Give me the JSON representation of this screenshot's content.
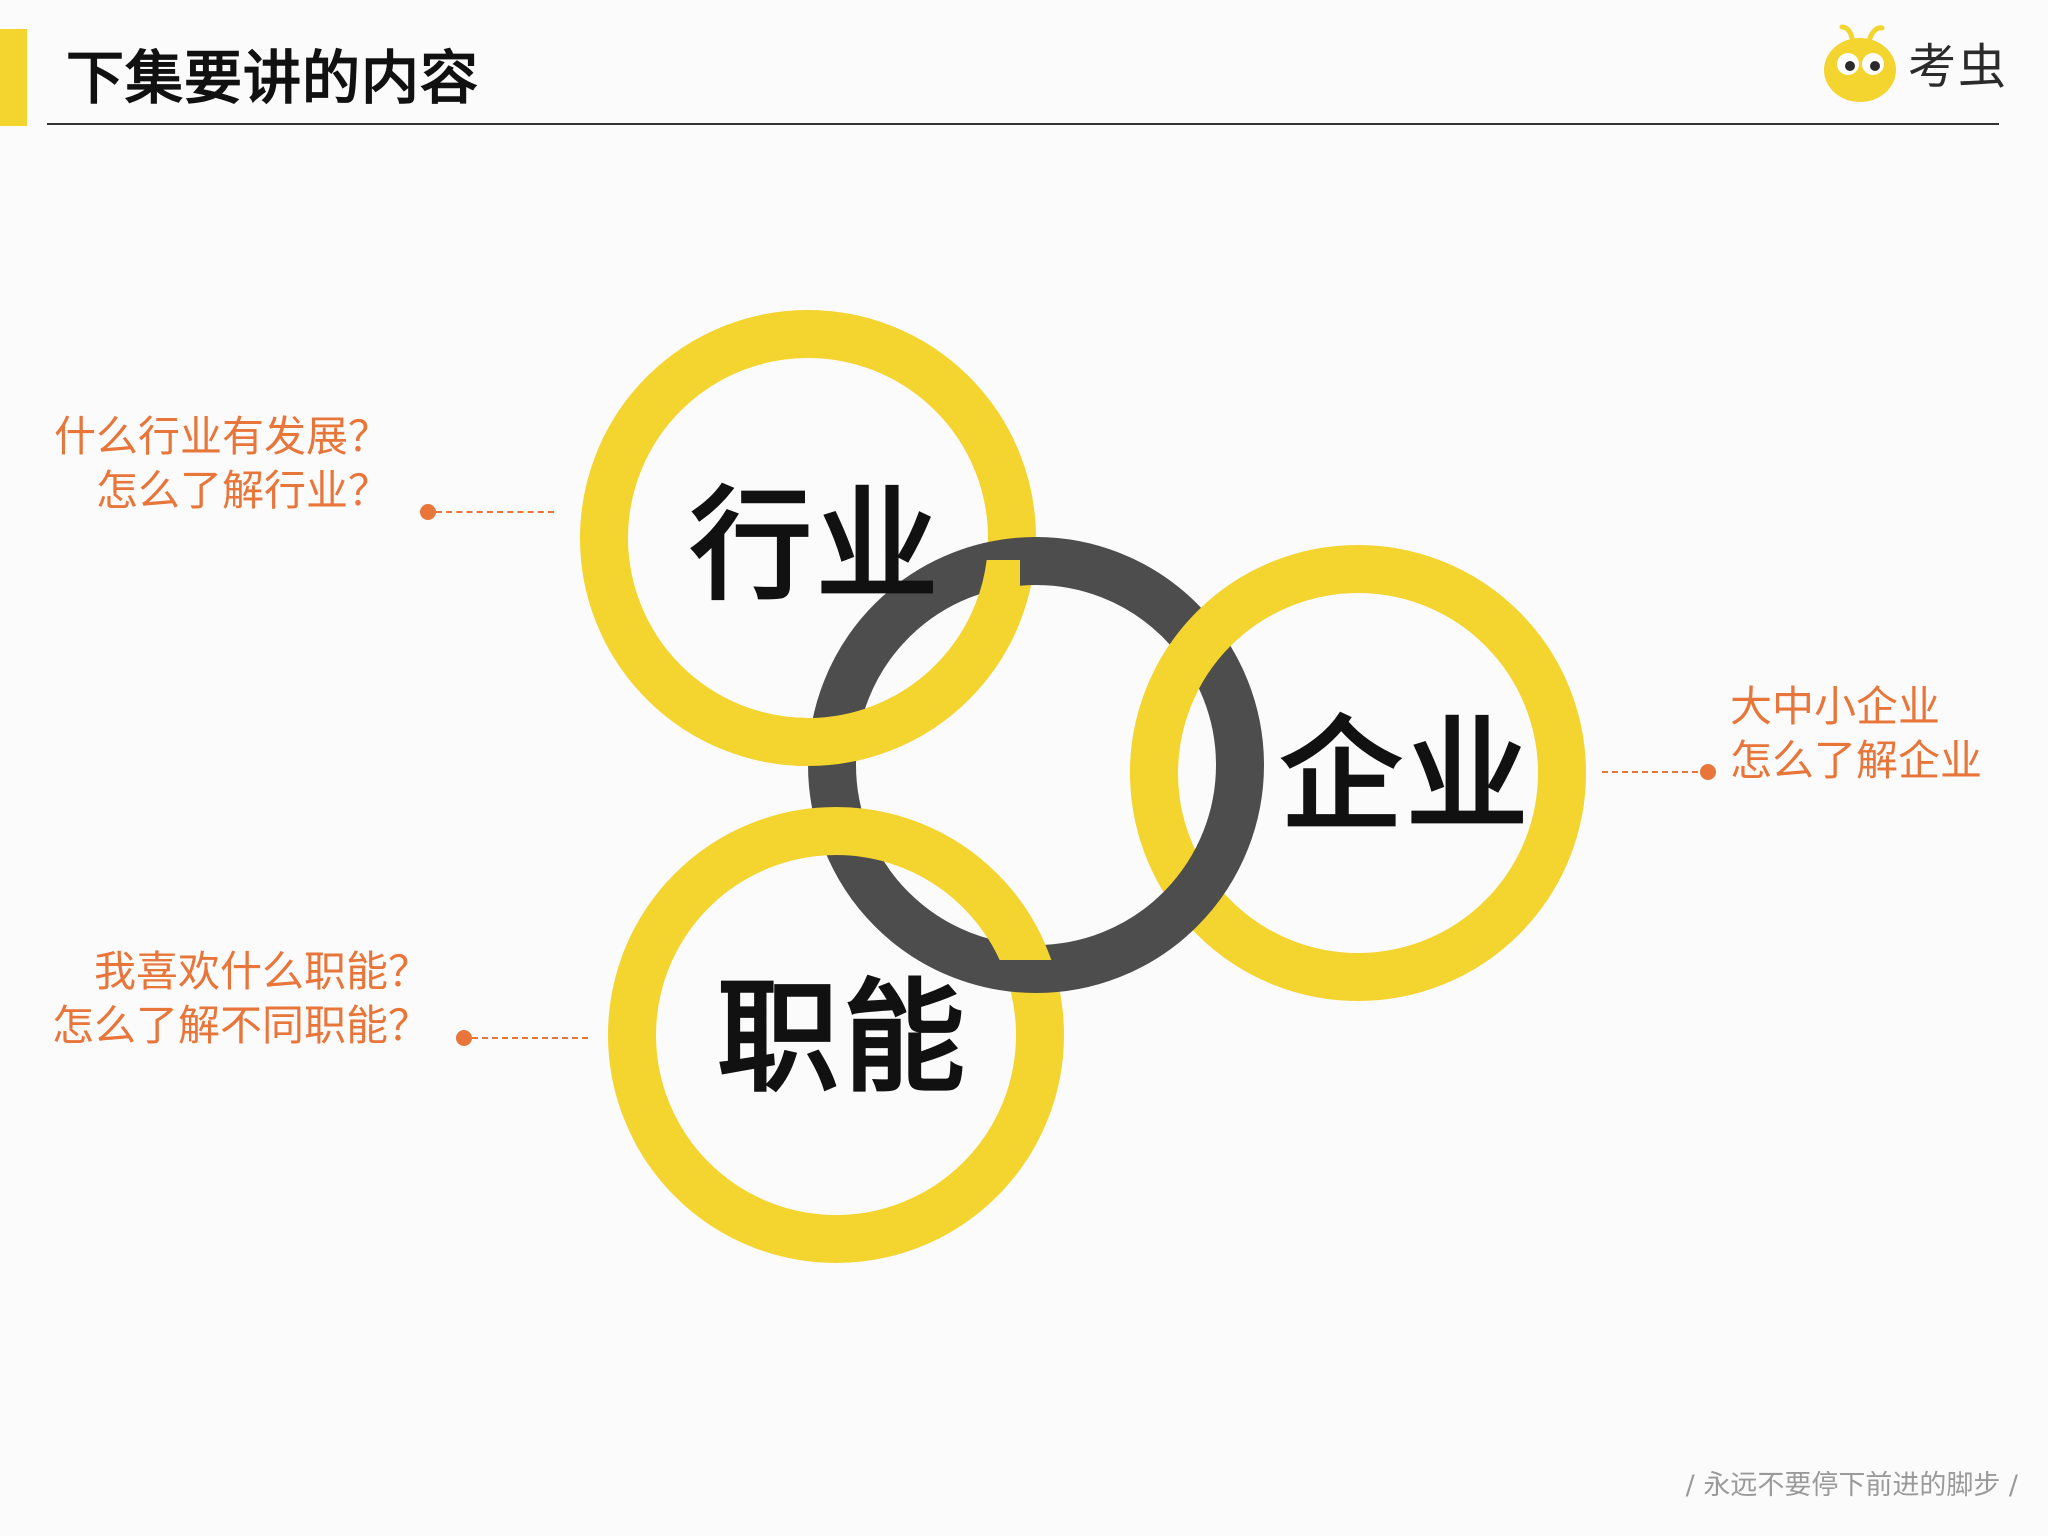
{
  "header": {
    "title": "下集要讲的内容"
  },
  "logo": {
    "name": "考虫"
  },
  "diagram": {
    "rings": [
      {
        "label": "行业",
        "color": "#f4d42e"
      },
      {
        "label": "企业",
        "color": "#f4d42e"
      },
      {
        "label": "职能",
        "color": "#f4d42e"
      },
      {
        "label": "",
        "color": "#4d4d4d"
      }
    ]
  },
  "callouts": {
    "industry": {
      "line1": "什么行业有发展？",
      "line2": "怎么了解行业？"
    },
    "company": {
      "line1": "大中小企业",
      "line2": "怎么了解企业"
    },
    "function": {
      "line1": "我喜欢什么职能？",
      "line2": "怎么了解不同职能？"
    }
  },
  "footer": {
    "slogan": "/ 永远不要停下前进的脚步 /"
  },
  "colors": {
    "accent_yellow": "#f4d42e",
    "center_ring_gray": "#4d4d4d",
    "callout_orange": "#e8753a",
    "title_black": "#111111"
  }
}
